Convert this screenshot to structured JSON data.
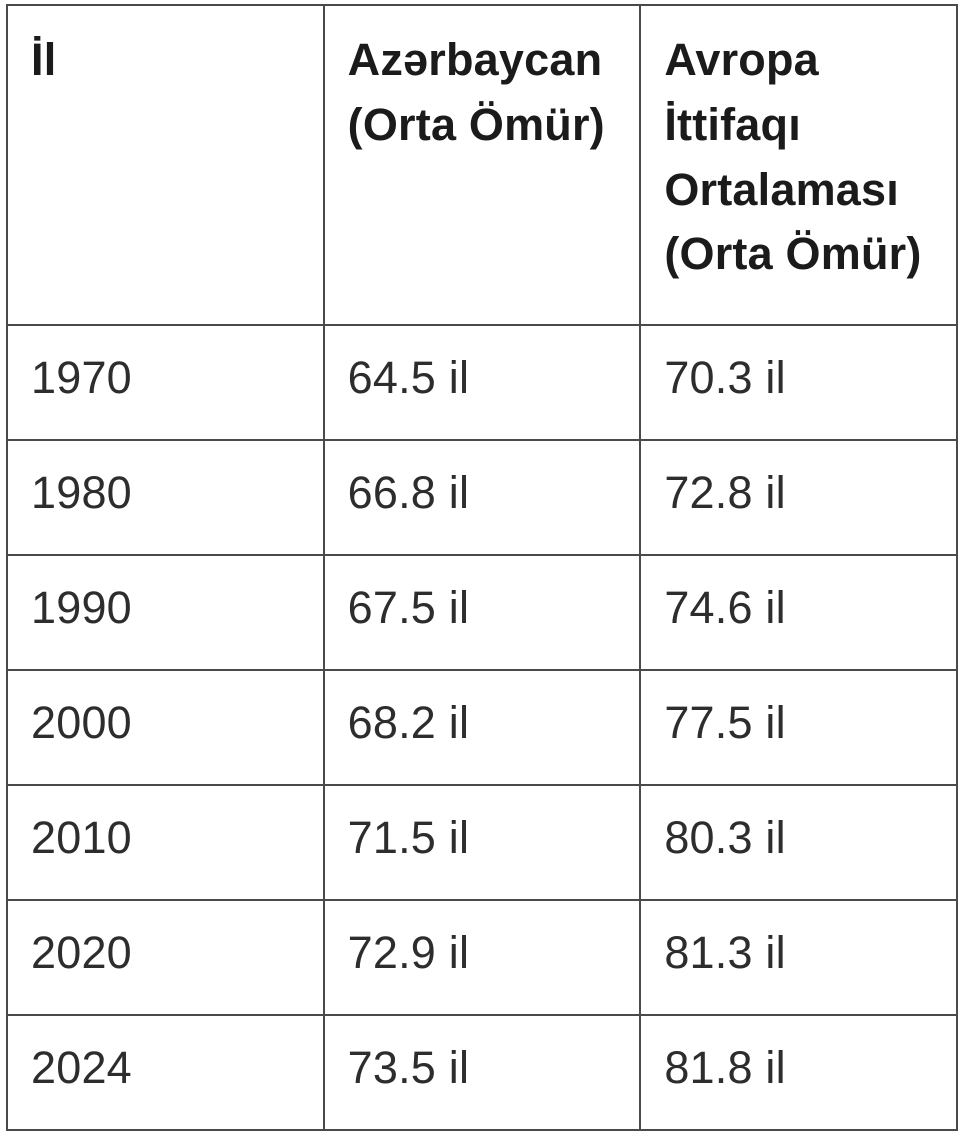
{
  "colors": {
    "background": "#ffffff",
    "border": "#4a4a4a",
    "header_text": "#1b1b1b",
    "body_text": "#2d2d2d"
  },
  "chart_data": {
    "type": "table",
    "columns": [
      "İl",
      "Azərbaycan (Orta Ömür)",
      "Avropa İttifaqı Ortalaması (Orta Ömür)"
    ],
    "rows": [
      [
        "1970",
        "64.5 il",
        "70.3 il"
      ],
      [
        "1980",
        "66.8 il",
        "72.8 il"
      ],
      [
        "1990",
        "67.5 il",
        "74.6 il"
      ],
      [
        "2000",
        "68.2 il",
        "77.5 il"
      ],
      [
        "2010",
        "71.5 il",
        "80.3 il"
      ],
      [
        "2020",
        "72.9 il",
        "81.3 il"
      ],
      [
        "2024",
        "73.5 il",
        "81.8 il"
      ]
    ],
    "categories": [
      "1970",
      "1980",
      "1990",
      "2000",
      "2010",
      "2020",
      "2024"
    ],
    "series": [
      {
        "name": "Azərbaycan (Orta Ömür)",
        "values": [
          64.5,
          66.8,
          67.5,
          68.2,
          71.5,
          72.9,
          73.5
        ]
      },
      {
        "name": "Avropa İttifaqı Ortalaması (Orta Ömür)",
        "values": [
          70.3,
          72.8,
          74.6,
          77.5,
          80.3,
          81.3,
          81.8
        ]
      }
    ],
    "unit": "il",
    "legend_position": "none",
    "grid": true
  }
}
